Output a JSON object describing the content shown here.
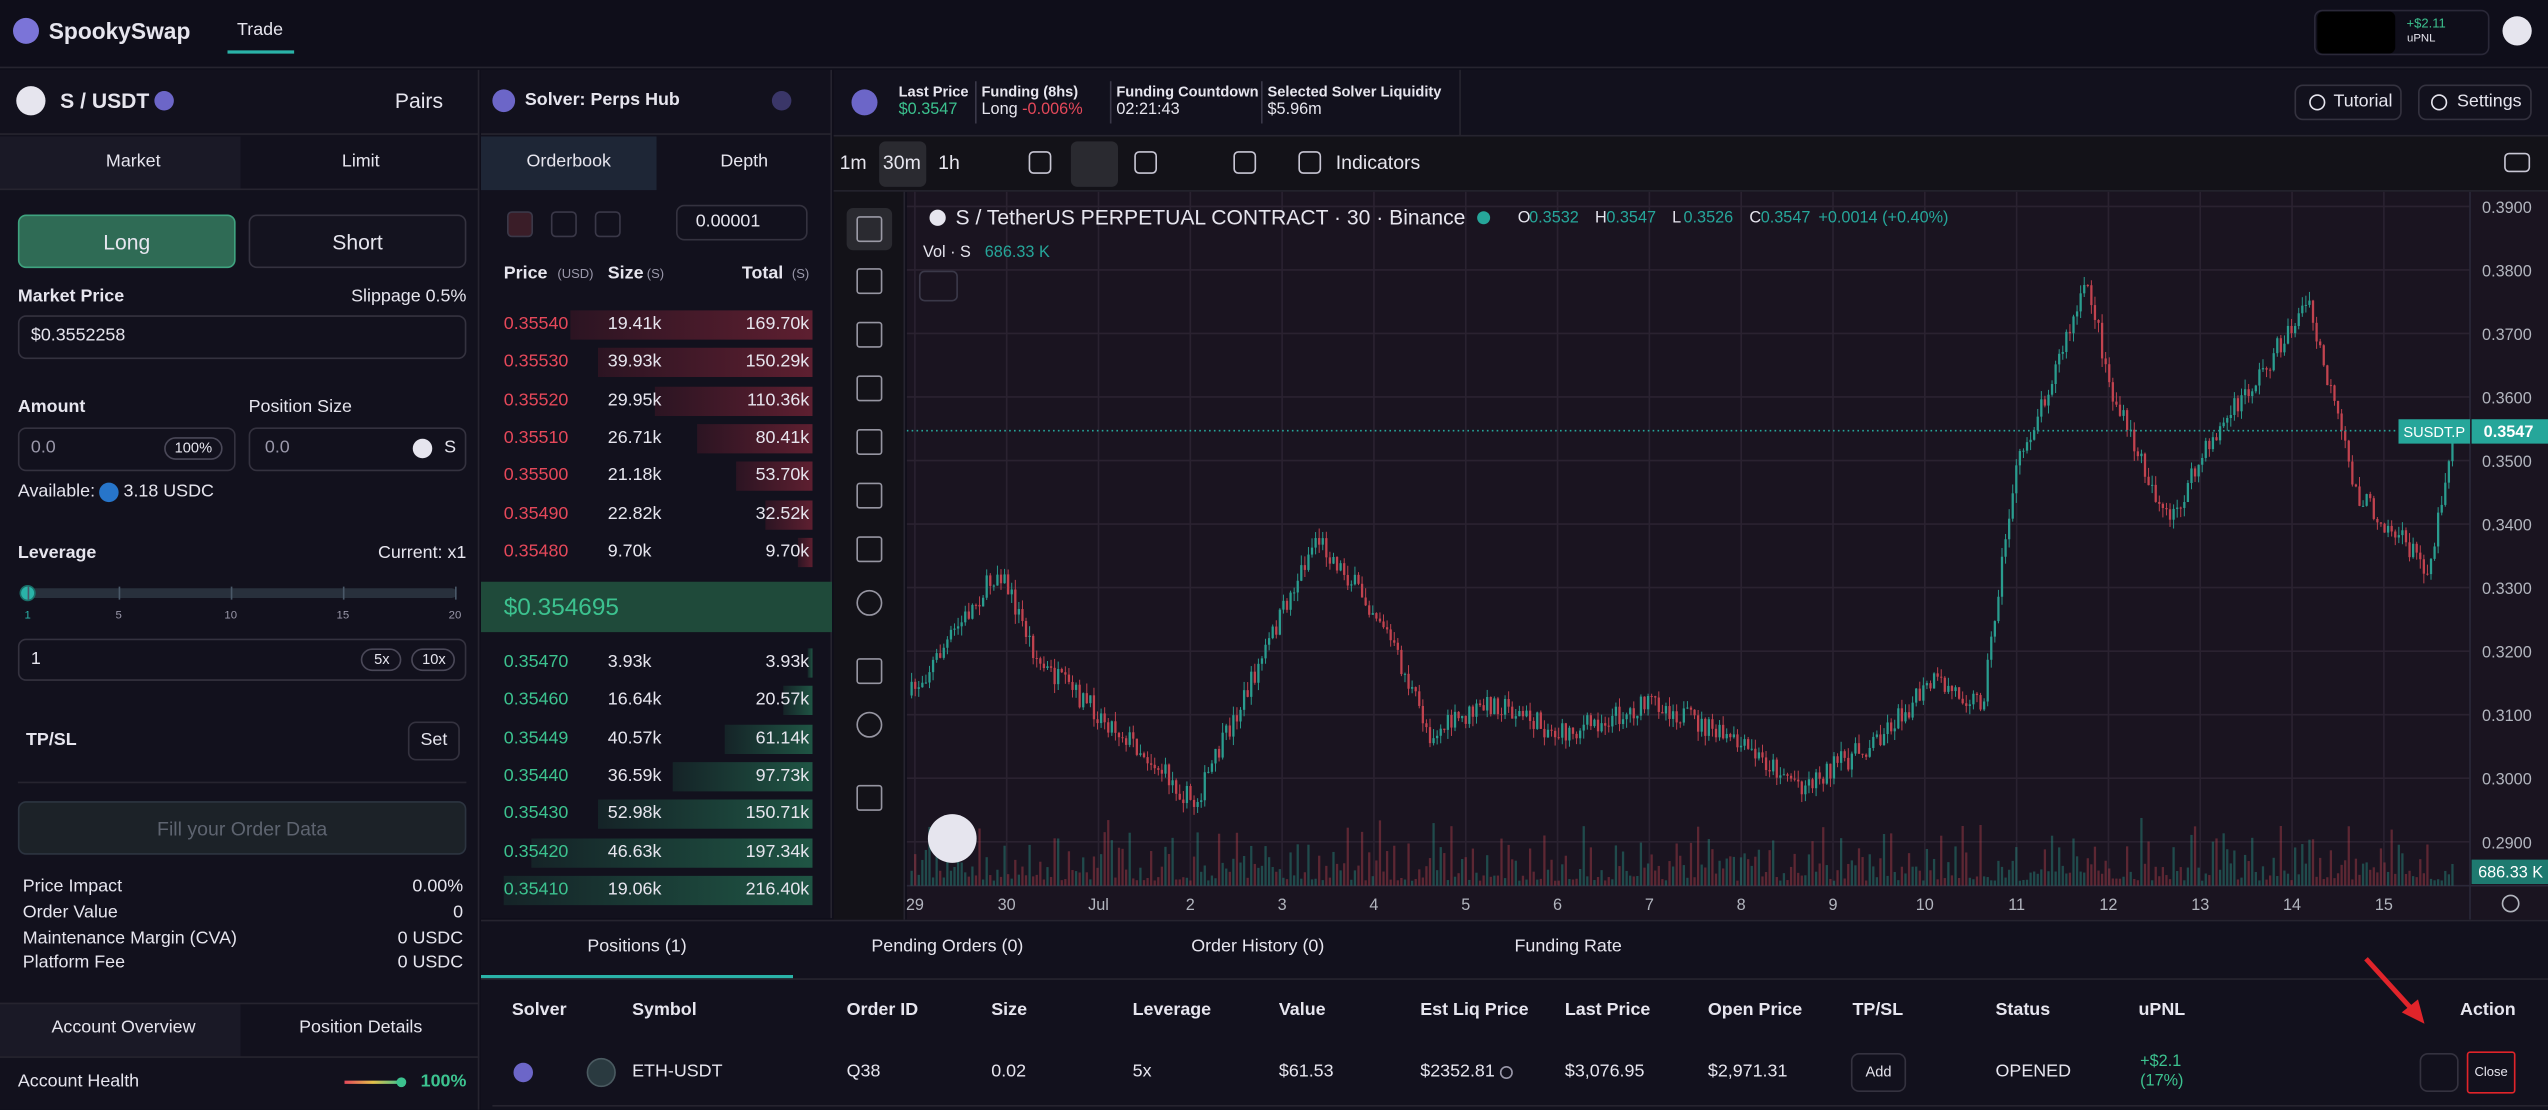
{
  "header": {
    "brand": "SpookySwap",
    "nav": "Trade",
    "upnl_value": "+$2.11",
    "upnl_label": "uPNL"
  },
  "market": {
    "pair": "S / USDT",
    "pairs": "Pairs"
  },
  "order_form": {
    "tabs": [
      "Market",
      "Limit"
    ],
    "sides": [
      "Long",
      "Short"
    ],
    "market_price_label": "Market Price",
    "slippage": "Slippage 0.5%",
    "market_price": "$0.3552258",
    "amount_label": "Amount",
    "amount": "0.0",
    "amount_pct": "100%",
    "position_size_label": "Position Size",
    "position_size": "0.0",
    "position_unit": "S",
    "available_label": "Available:",
    "available": "3.18 USDC",
    "leverage_label": "Leverage",
    "leverage_current": "Current: x1",
    "leverage_ticks": [
      "1",
      "5",
      "10",
      "15",
      "20"
    ],
    "leverage_input": "1",
    "leverage_presets": [
      "5x",
      "10x"
    ],
    "tpsl_label": "TP/SL",
    "tpsl_button": "Set",
    "submit": "Fill your Order Data",
    "summary": [
      [
        "Price Impact",
        "0.00%"
      ],
      [
        "Order Value",
        "0"
      ],
      [
        "Maintenance Margin (CVA)",
        "0 USDC"
      ],
      [
        "Platform Fee",
        "0 USDC"
      ]
    ]
  },
  "account": {
    "tabs": [
      "Account Overview",
      "Position Details"
    ],
    "health_label": "Account Health",
    "health": "100%"
  },
  "orderbook": {
    "solver": "Solver: Perps Hub",
    "tabs": [
      "Orderbook",
      "Depth"
    ],
    "tick_size": "0.00001",
    "headers": [
      {
        "label": "Price",
        "unit": "(USD)"
      },
      {
        "label": "Size",
        "unit": "(S)"
      },
      {
        "label": "Total",
        "unit": "(S)"
      }
    ],
    "asks": [
      [
        "0.35540",
        "19.41k",
        "169.70k"
      ],
      [
        "0.35530",
        "39.93k",
        "150.29k"
      ],
      [
        "0.35520",
        "29.95k",
        "110.36k"
      ],
      [
        "0.35510",
        "26.71k",
        "80.41k"
      ],
      [
        "0.35500",
        "21.18k",
        "53.70k"
      ],
      [
        "0.35490",
        "22.82k",
        "32.52k"
      ],
      [
        "0.35480",
        "9.70k",
        "9.70k"
      ]
    ],
    "mid": "$0.354695",
    "bids": [
      [
        "0.35470",
        "3.93k",
        "3.93k"
      ],
      [
        "0.35460",
        "16.64k",
        "20.57k"
      ],
      [
        "0.35449",
        "40.57k",
        "61.14k"
      ],
      [
        "0.35440",
        "36.59k",
        "97.73k"
      ],
      [
        "0.35430",
        "52.98k",
        "150.71k"
      ],
      [
        "0.35420",
        "46.63k",
        "197.34k"
      ],
      [
        "0.35410",
        "19.06k",
        "216.40k"
      ]
    ]
  },
  "stats": [
    {
      "label": "Last Price",
      "value": "$0.3547"
    },
    {
      "label": "Funding (8hs)",
      "value": "Long",
      "extra": "-0.006%"
    },
    {
      "label": "Funding Countdown",
      "value": "02:21:43"
    },
    {
      "label": "Selected Solver Liquidity",
      "value": "$5.96m"
    }
  ],
  "top_buttons": [
    "Tutorial",
    "Settings"
  ],
  "toolbar": {
    "intervals": [
      "1m",
      "30m",
      "1h"
    ],
    "indicators": "Indicators"
  },
  "chart": {
    "title": "S / TetherUS PERPETUAL CONTRACT · 30 · Binance",
    "ohlc": [
      [
        "O",
        "0.3532"
      ],
      [
        "H",
        "0.3547"
      ],
      [
        "L",
        "0.3526"
      ],
      [
        "C",
        "0.3547"
      ]
    ],
    "change": "+0.0014 (+0.40%)",
    "volume_label": "Vol · S",
    "volume": "686.33 K",
    "price_axis": [
      "0.3900",
      "0.3800",
      "0.3700",
      "0.3600",
      "0.3500",
      "0.3400",
      "0.3300",
      "0.3200",
      "0.3100",
      "0.3000",
      "0.2900"
    ],
    "symbol_tag": "SUSDT.P",
    "last_price_tag": "0.3547",
    "volume_tag": "686.33 K",
    "time_axis": [
      "29",
      "30",
      "Jul",
      "2",
      "3",
      "4",
      "5",
      "6",
      "7",
      "8",
      "9",
      "10",
      "11",
      "12",
      "13",
      "14",
      "15"
    ]
  },
  "positions": {
    "tabs": [
      "Positions (1)",
      "Pending Orders (0)",
      "Order History (0)",
      "Funding Rate"
    ],
    "columns": [
      "Solver",
      "Symbol",
      "Order ID",
      "Size",
      "Leverage",
      "Value",
      "Est Liq Price",
      "Last Price",
      "Open Price",
      "TP/SL",
      "Status",
      "uPNL",
      "Action"
    ],
    "rows": [
      {
        "symbol": "ETH-USDT",
        "order_id": "Q38",
        "size": "0.02",
        "leverage": "5x",
        "value": "$61.53",
        "liq_price": "$2352.81",
        "last_price": "$3,076.95",
        "open_price": "$2,971.31",
        "tpsl": "Add",
        "status": "OPENED",
        "upnl": "+$2.1",
        "upnl_pct": "(17%)",
        "close": "Close"
      }
    ]
  }
}
